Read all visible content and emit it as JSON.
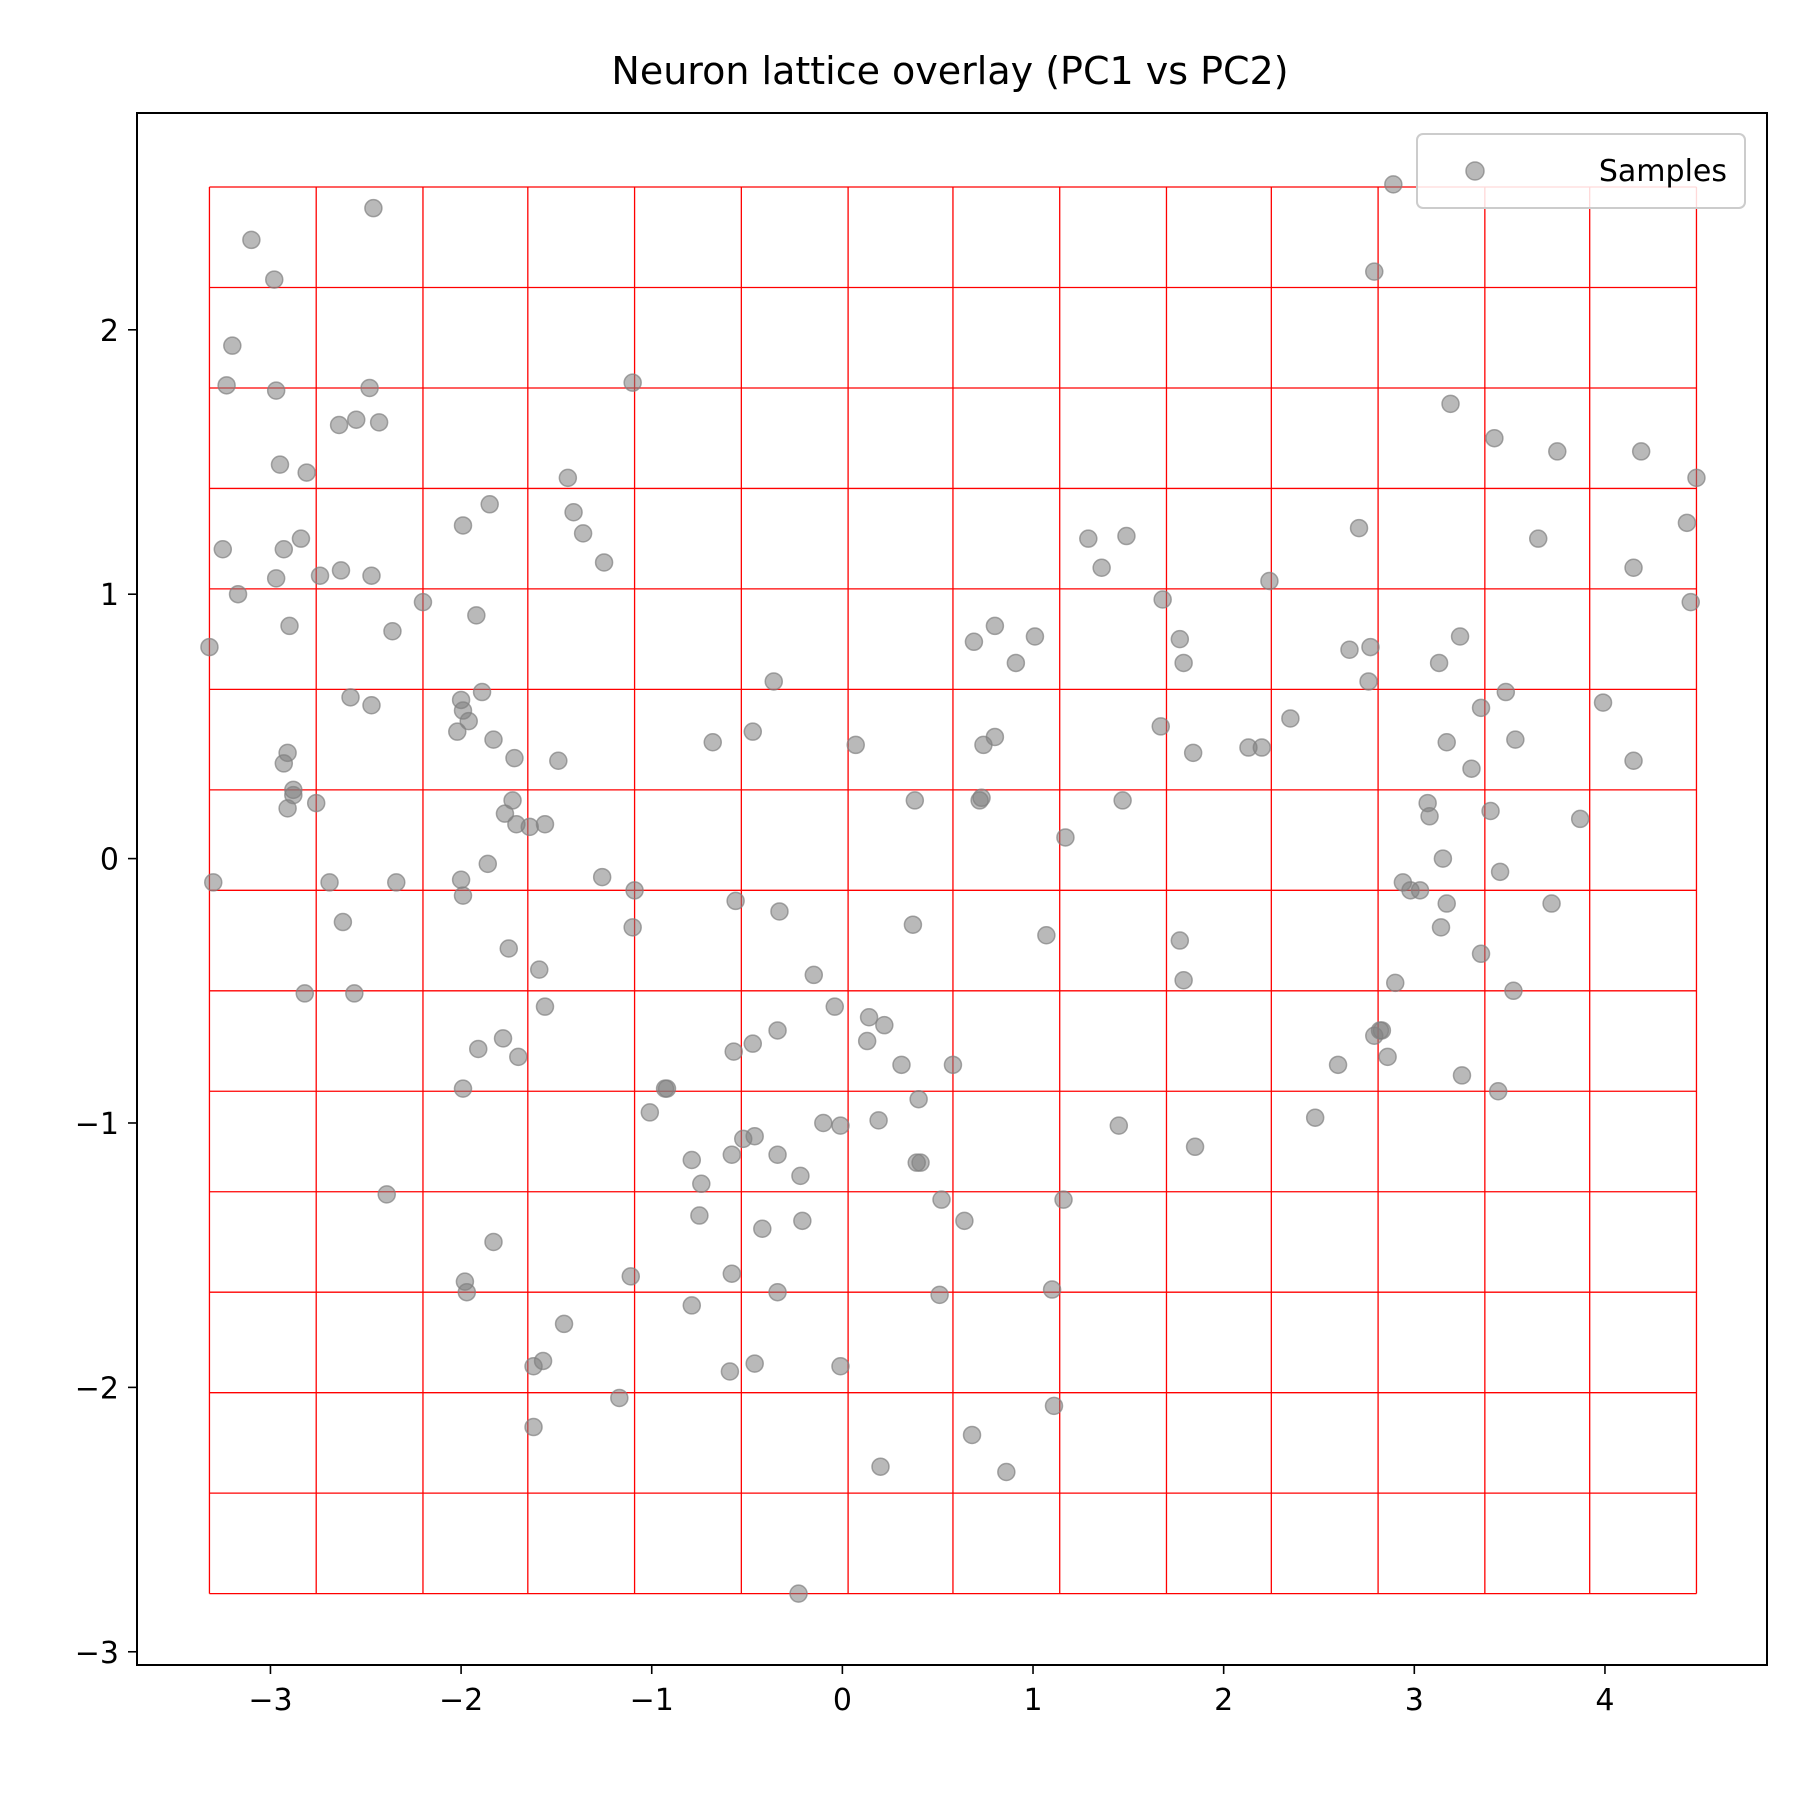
{
  "chart_data": {
    "type": "scatter",
    "title": "Neuron lattice overlay (PC1 vs PC2)",
    "xlabel": "",
    "ylabel": "",
    "xlim": [
      -3.7,
      4.85
    ],
    "ylim": [
      -3.05,
      2.82
    ],
    "xticks": [
      -3,
      -2,
      -1,
      0,
      1,
      2,
      3,
      4
    ],
    "yticks": [
      -3,
      -2,
      -1,
      0,
      1,
      2
    ],
    "xtick_labels": [
      "−3",
      "−2",
      "−1",
      "0",
      "1",
      "2",
      "3",
      "4"
    ],
    "ytick_labels": [
      "−3",
      "−2",
      "−1",
      "0",
      "1",
      "2"
    ],
    "grid": false,
    "legend": {
      "position": "top-right",
      "entries": [
        "Samples"
      ]
    },
    "lattice": {
      "color": "#ff0000",
      "x_lines": [
        -3.32,
        -2.76,
        -2.2,
        -1.65,
        -1.09,
        -0.53,
        0.03,
        0.58,
        1.14,
        1.7,
        2.25,
        2.81,
        3.37,
        3.92,
        4.48
      ],
      "y_lines": [
        -2.78,
        -2.4,
        -2.02,
        -1.64,
        -1.26,
        -0.88,
        -0.5,
        -0.12,
        0.26,
        0.64,
        1.02,
        1.4,
        1.78,
        2.16,
        2.54
      ]
    },
    "series": [
      {
        "name": "Samples",
        "color": "#808080",
        "x": [
          -3.1,
          -2.98,
          -3.2,
          -3.23,
          -2.97,
          -3.25,
          -2.93,
          -3.17,
          -2.97,
          -2.9,
          -3.32,
          -2.91,
          -3.3,
          -2.88,
          -2.93,
          -2.91,
          -2.88,
          -2.95,
          -2.81,
          -2.84,
          -2.74,
          -2.63,
          -2.55,
          -2.48,
          -2.43,
          -2.46,
          -2.47,
          -2.58,
          -2.47,
          -2.36,
          -2.34,
          -2.69,
          -2.76,
          -2.56,
          -2.62,
          -2.82,
          -2.64,
          -2.39,
          -2.2,
          -1.99,
          -1.92,
          -1.85,
          -1.89,
          -2.02,
          -2.0,
          -1.99,
          -1.96,
          -1.83,
          -1.72,
          -1.73,
          -1.71,
          -1.77,
          -1.64,
          -1.56,
          -1.49,
          -1.86,
          -2.0,
          -1.99,
          -1.75,
          -1.59,
          -1.56,
          -1.78,
          -1.91,
          -1.7,
          -1.99,
          -1.83,
          -1.98,
          -1.97,
          -1.62,
          -1.57,
          -1.46,
          -1.62,
          -1.44,
          -1.41,
          -1.36,
          -1.25,
          -1.1,
          -1.26,
          -1.09,
          -1.1,
          -0.36,
          -0.47,
          -0.68,
          -0.56,
          -0.33,
          -0.57,
          -0.47,
          -0.34,
          -0.15,
          -0.04,
          -0.93,
          -0.92,
          -1.01,
          -0.79,
          -0.74,
          -0.58,
          -0.52,
          -0.46,
          -0.34,
          -0.22,
          -0.1,
          -0.01,
          -0.75,
          -0.42,
          -0.21,
          -0.58,
          -0.34,
          -0.79,
          -1.17,
          -0.59,
          -0.46,
          -0.01,
          -1.11,
          -0.23,
          0.07,
          0.38,
          0.37,
          0.14,
          0.13,
          0.22,
          0.31,
          0.4,
          0.19,
          0.39,
          0.58,
          0.41,
          0.52,
          0.64,
          0.51,
          0.69,
          0.74,
          0.8,
          0.91,
          1.01,
          0.73,
          0.8,
          0.72,
          1.17,
          1.07,
          1.1,
          1.16,
          1.11,
          1.29,
          1.36,
          1.49,
          1.68,
          1.77,
          1.79,
          1.67,
          1.84,
          1.47,
          1.77,
          1.79,
          1.45,
          1.85,
          0.68,
          0.86,
          0.2,
          2.89,
          2.79,
          3.19,
          3.42,
          3.75,
          4.19,
          4.48,
          4.43,
          4.15,
          4.45,
          2.71,
          3.65,
          2.66,
          2.77,
          2.76,
          3.13,
          3.24,
          3.35,
          3.48,
          3.99,
          2.35,
          2.13,
          2.2,
          2.24,
          3.17,
          3.53,
          4.15,
          3.3,
          3.07,
          3.08,
          3.4,
          3.87,
          3.15,
          2.94,
          2.98,
          3.03,
          3.17,
          3.45,
          3.14,
          3.35,
          3.72,
          2.9,
          3.52,
          2.83,
          2.82,
          2.79,
          2.86,
          2.6,
          3.25,
          3.44,
          2.48
        ],
        "y": [
          2.34,
          2.19,
          1.94,
          1.79,
          1.77,
          1.17,
          1.17,
          1.0,
          1.06,
          0.88,
          0.8,
          0.4,
          -0.09,
          0.26,
          0.36,
          0.19,
          0.24,
          1.49,
          1.46,
          1.21,
          1.07,
          1.09,
          1.66,
          1.78,
          1.65,
          2.46,
          1.07,
          0.61,
          0.58,
          0.86,
          -0.09,
          -0.09,
          0.21,
          -0.51,
          -0.24,
          -0.51,
          1.64,
          -1.27,
          0.97,
          1.26,
          0.92,
          1.34,
          0.63,
          0.48,
          0.6,
          0.56,
          0.52,
          0.45,
          0.38,
          0.22,
          0.13,
          0.17,
          0.12,
          0.13,
          0.37,
          -0.02,
          -0.08,
          -0.14,
          -0.34,
          -0.42,
          -0.56,
          -0.68,
          -0.72,
          -0.75,
          -0.87,
          -1.45,
          -1.6,
          -1.64,
          -1.92,
          -1.9,
          -1.76,
          -2.15,
          1.44,
          1.31,
          1.23,
          1.12,
          1.8,
          -0.07,
          -0.12,
          -0.26,
          0.67,
          0.48,
          0.44,
          -0.16,
          -0.2,
          -0.73,
          -0.7,
          -0.65,
          -0.44,
          -0.56,
          -0.87,
          -0.87,
          -0.96,
          -1.14,
          -1.23,
          -1.12,
          -1.06,
          -1.05,
          -1.12,
          -1.2,
          -1.0,
          -1.01,
          -1.35,
          -1.4,
          -1.37,
          -1.57,
          -1.64,
          -1.69,
          -2.04,
          -1.94,
          -1.91,
          -1.92,
          -1.58,
          -2.78,
          0.43,
          0.22,
          -0.25,
          -0.6,
          -0.69,
          -0.63,
          -0.78,
          -0.91,
          -0.99,
          -1.15,
          -0.78,
          -1.15,
          -1.29,
          -1.37,
          -1.65,
          0.82,
          0.43,
          0.88,
          0.74,
          0.84,
          0.23,
          0.46,
          0.22,
          0.08,
          -0.29,
          -1.63,
          -1.29,
          -2.07,
          1.21,
          1.1,
          1.22,
          0.98,
          0.83,
          0.74,
          0.5,
          0.4,
          0.22,
          -0.31,
          -0.46,
          -1.01,
          -1.09,
          -2.18,
          -2.32,
          -2.3,
          2.55,
          2.22,
          1.72,
          1.59,
          1.54,
          1.54,
          1.44,
          1.27,
          1.1,
          0.97,
          1.25,
          1.21,
          0.79,
          0.8,
          0.67,
          0.74,
          0.84,
          0.57,
          0.63,
          0.59,
          0.53,
          0.42,
          0.42,
          1.05,
          0.44,
          0.45,
          0.37,
          0.34,
          0.21,
          0.16,
          0.18,
          0.15,
          0.0,
          -0.09,
          -0.12,
          -0.12,
          -0.17,
          -0.05,
          -0.26,
          -0.36,
          -0.17,
          -0.47,
          -0.5,
          -0.65,
          -0.65,
          -0.67,
          -0.75,
          -0.78,
          -0.82,
          -0.88,
          -0.98
        ]
      }
    ]
  }
}
